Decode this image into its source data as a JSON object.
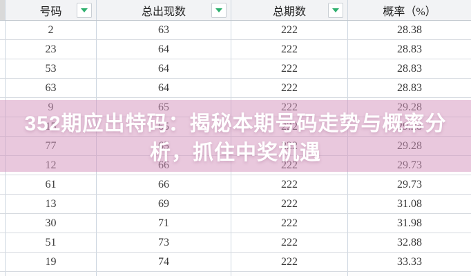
{
  "table": {
    "headers": [
      {
        "label": "号码",
        "has_filter": true
      },
      {
        "label": "总出现数",
        "has_filter": true
      },
      {
        "label": "总期数",
        "has_filter": true
      },
      {
        "label": "概率（%）",
        "has_filter": false
      }
    ],
    "rows": [
      {
        "number": "2",
        "occurrences": "63",
        "periods": "222",
        "probability": "28.38"
      },
      {
        "number": "23",
        "occurrences": "64",
        "periods": "222",
        "probability": "28.83"
      },
      {
        "number": "53",
        "occurrences": "64",
        "periods": "222",
        "probability": "28.83"
      },
      {
        "number": "63",
        "occurrences": "64",
        "periods": "222",
        "probability": "28.83"
      },
      {
        "number": "9",
        "occurrences": "65",
        "periods": "222",
        "probability": "29.28"
      },
      {
        "number": "15",
        "occurrences": "65",
        "periods": "222",
        "probability": "29.28"
      },
      {
        "number": "77",
        "occurrences": "65",
        "periods": "222",
        "probability": "29.28"
      },
      {
        "number": "12",
        "occurrences": "66",
        "periods": "222",
        "probability": "29.73"
      },
      {
        "number": "61",
        "occurrences": "66",
        "periods": "222",
        "probability": "29.73"
      },
      {
        "number": "13",
        "occurrences": "69",
        "periods": "222",
        "probability": "31.08"
      },
      {
        "number": "30",
        "occurrences": "71",
        "periods": "222",
        "probability": "31.98"
      },
      {
        "number": "51",
        "occurrences": "73",
        "periods": "222",
        "probability": "32.88"
      },
      {
        "number": "19",
        "occurrences": "74",
        "periods": "222",
        "probability": "33.33"
      }
    ]
  },
  "overlay": {
    "full_title": "352期应出特码：揭秘本期号码走势与概率分析，抓住中奖机遇",
    "lines": [
      "352期应出特码：揭秘本期号码走势与概率分",
      "析，抓住中奖机遇"
    ]
  },
  "colors": {
    "filter_arrow": "#2eaf6e",
    "header_bg": "#f2f3f5",
    "overlay_band": "rgba(212,150,190,0.52)",
    "overlay_text": "#ffffff"
  }
}
